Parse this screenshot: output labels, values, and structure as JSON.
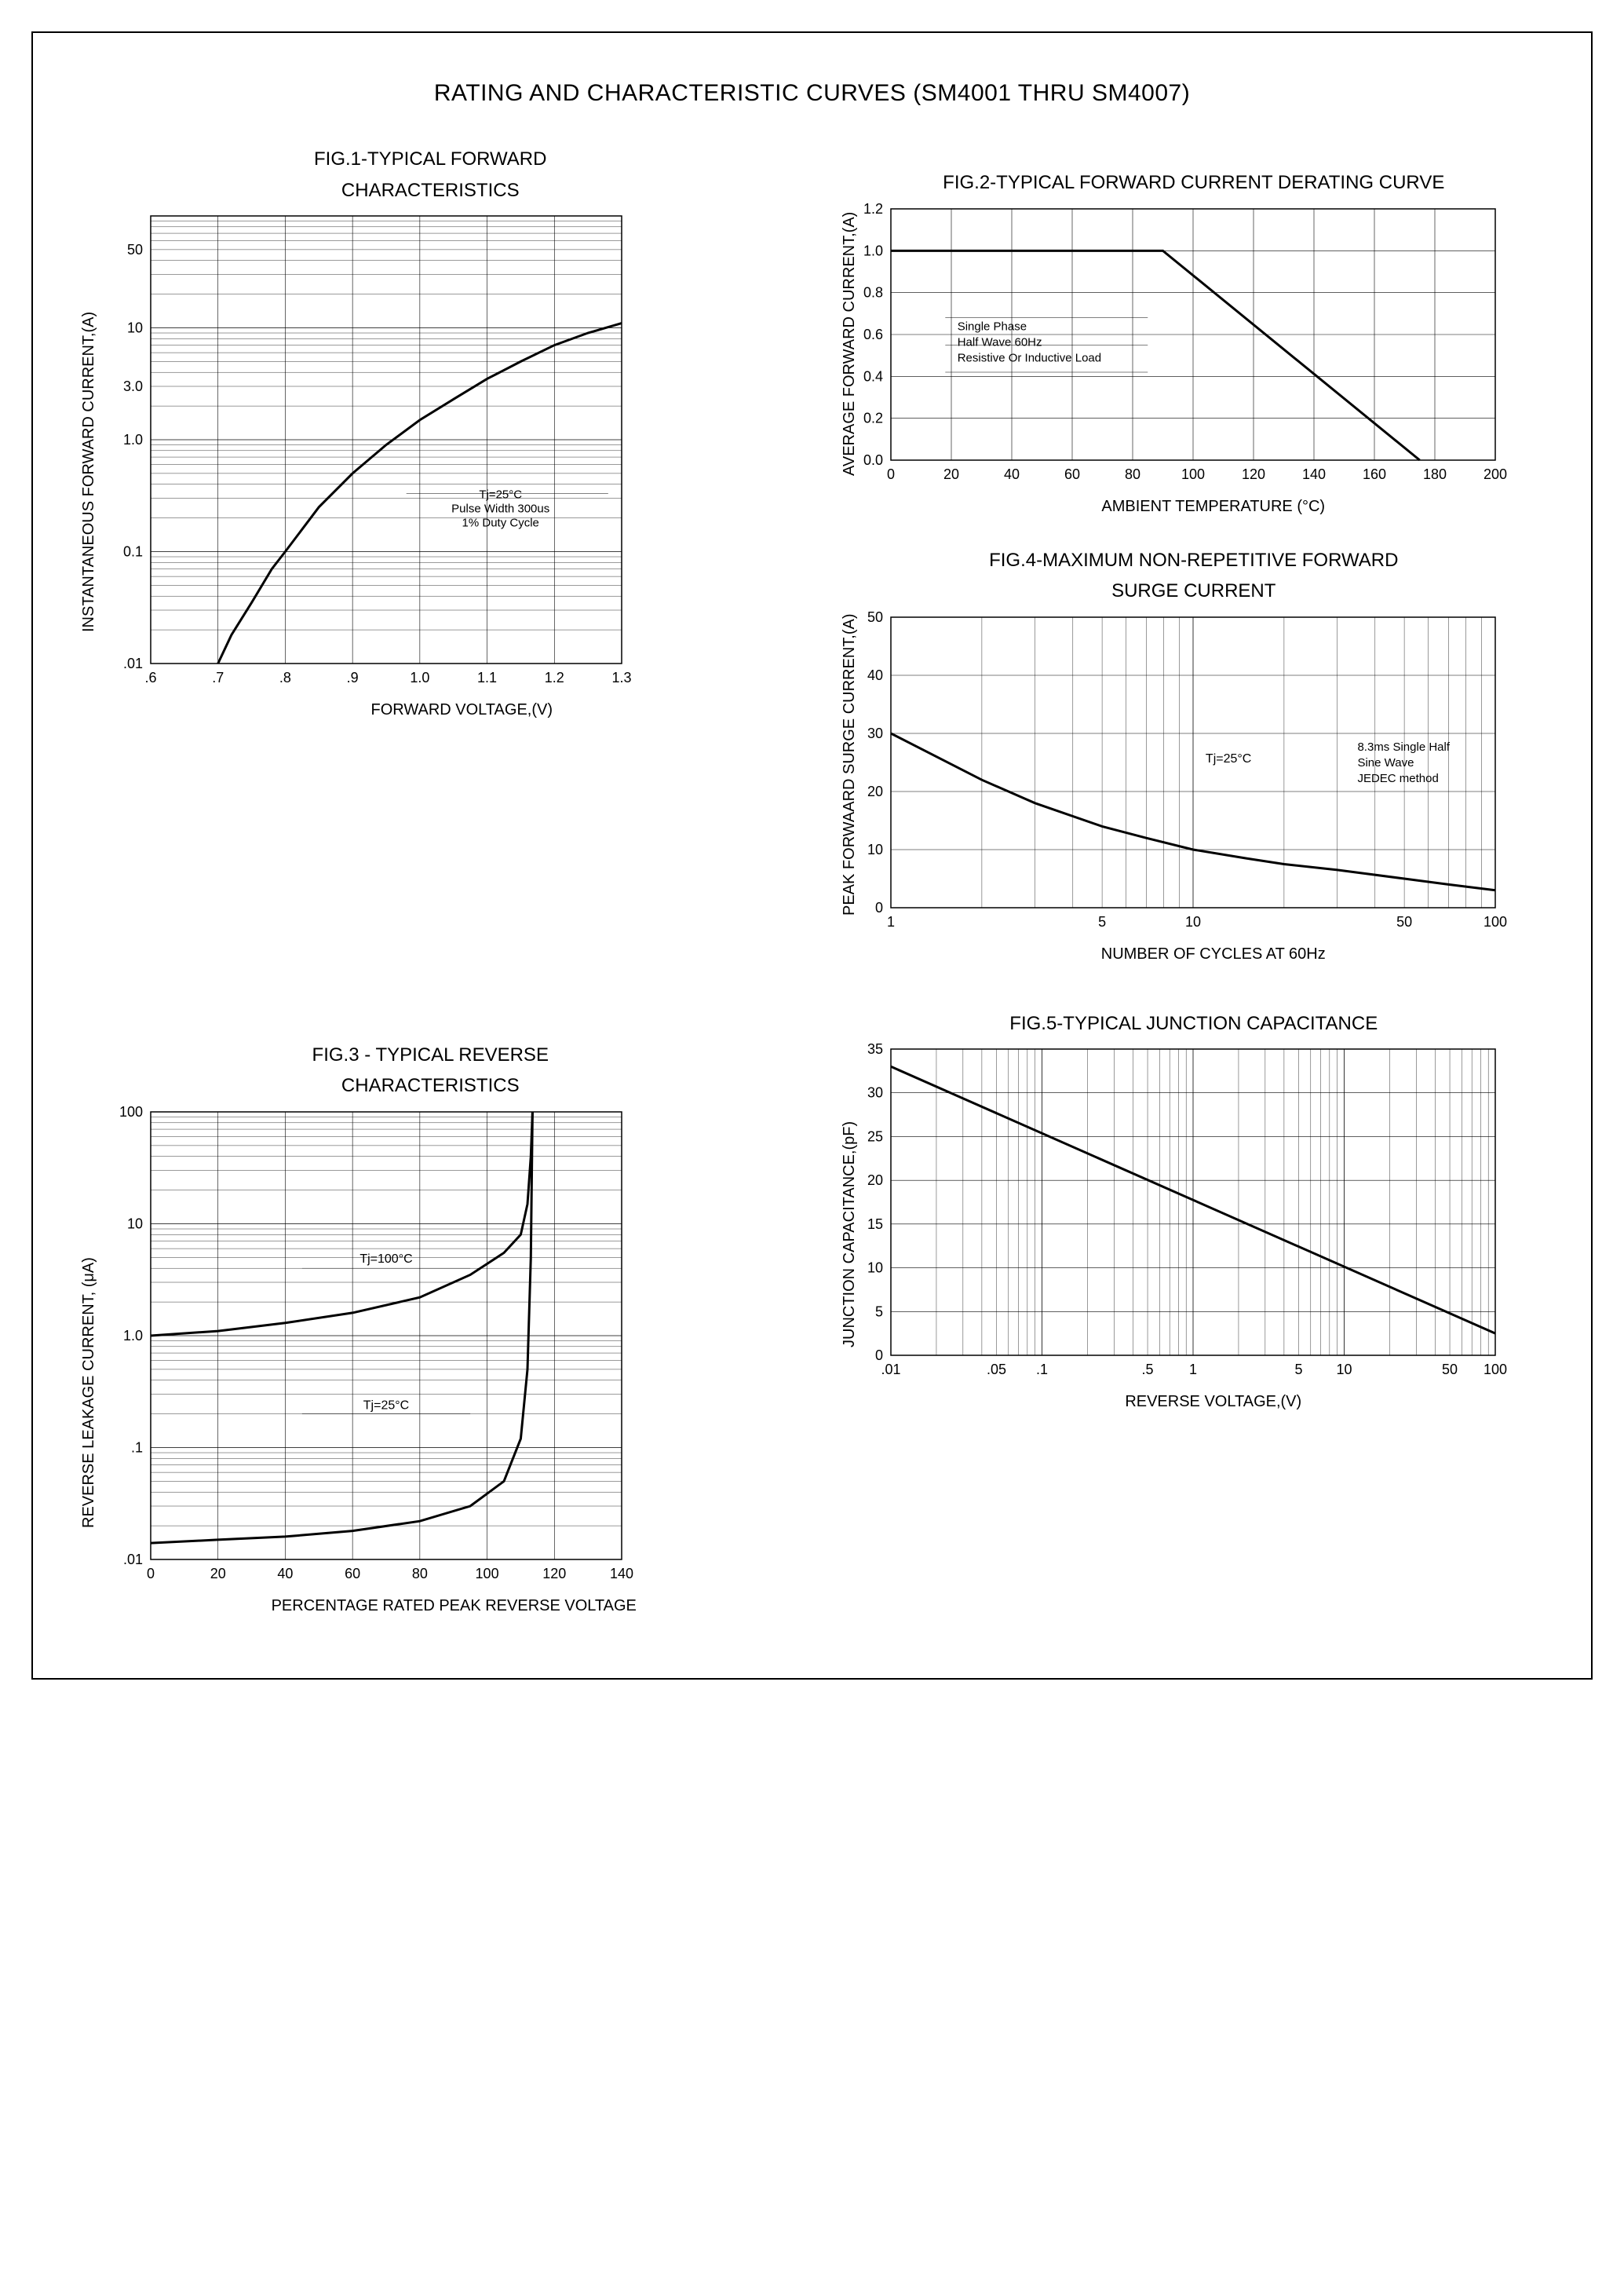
{
  "title": "RATING AND CHARACTERISTIC CURVES (SM4001 THRU SM4007)",
  "colors": {
    "line": "#000000",
    "grid": "#000000",
    "bg": "#ffffff"
  },
  "fig1": {
    "title1": "FIG.1-TYPICAL FORWARD",
    "title2": "CHARACTERISTICS",
    "xlabel": "FORWARD VOLTAGE,(V)",
    "ylabel": "INSTANTANEOUS FORWARD CURRENT,(A)",
    "type": "line-semilog-y",
    "xlim": [
      0.6,
      1.3
    ],
    "xticks": [
      0.6,
      0.7,
      0.8,
      0.9,
      1.0,
      1.1,
      1.2,
      1.3
    ],
    "xtick_labels": [
      ".6",
      ".7",
      ".8",
      ".9",
      "1.0",
      "1.1",
      "1.2",
      "1.3"
    ],
    "ylim_log": [
      -2,
      2
    ],
    "ytick_labels": [
      ".01",
      "0.1",
      "1.0",
      "3.0",
      "10",
      "50"
    ],
    "ytick_logpos": [
      -2,
      -1,
      0,
      0.477,
      1,
      1.699
    ],
    "anno_lines": [
      "Tj=25°C",
      "Pulse Width 300us",
      "1% Duty Cycle"
    ],
    "curve": [
      [
        0.7,
        0.01
      ],
      [
        0.72,
        0.018
      ],
      [
        0.75,
        0.035
      ],
      [
        0.78,
        0.07
      ],
      [
        0.8,
        0.1
      ],
      [
        0.85,
        0.25
      ],
      [
        0.9,
        0.5
      ],
      [
        0.95,
        0.9
      ],
      [
        1.0,
        1.5
      ],
      [
        1.05,
        2.3
      ],
      [
        1.1,
        3.5
      ],
      [
        1.15,
        5.0
      ],
      [
        1.2,
        7.0
      ],
      [
        1.25,
        9.0
      ],
      [
        1.3,
        11.0
      ]
    ],
    "line_width": 3
  },
  "fig2": {
    "title": "FIG.2-TYPICAL FORWARD CURRENT DERATING CURVE",
    "xlabel": "AMBIENT TEMPERATURE (°C)",
    "ylabel": "AVERAGE FORWARD CURRENT,(A)",
    "type": "line",
    "xlim": [
      0,
      200
    ],
    "xstep": 20,
    "ylim": [
      0,
      1.2
    ],
    "ystep": 0.2,
    "anno_lines": [
      "Single Phase",
      "Half Wave 60Hz",
      "Resistive Or Inductive Load"
    ],
    "curve": [
      [
        0,
        1.0
      ],
      [
        90,
        1.0
      ],
      [
        175,
        0.0
      ]
    ],
    "line_width": 3
  },
  "fig3": {
    "title1": "FIG.3 - TYPICAL REVERSE",
    "title2": "CHARACTERISTICS",
    "xlabel": "PERCENTAGE RATED PEAK REVERSE VOLTAGE",
    "ylabel": "REVERSE LEAKAGE CURRENT, (μA)",
    "type": "line-semilog-y",
    "xlim": [
      0,
      140
    ],
    "xstep": 20,
    "ylim_log": [
      -2,
      2
    ],
    "ytick_labels": [
      ".01",
      ".1",
      "1.0",
      "10",
      "100"
    ],
    "ytick_logpos": [
      -2,
      -1,
      0,
      1,
      2
    ],
    "anno1": "Tj=100°C",
    "anno2": "Tj=25°C",
    "curve_top": [
      [
        0,
        1.0
      ],
      [
        20,
        1.1
      ],
      [
        40,
        1.3
      ],
      [
        60,
        1.6
      ],
      [
        80,
        2.2
      ],
      [
        95,
        3.5
      ],
      [
        105,
        5.5
      ],
      [
        110,
        8.0
      ],
      [
        112,
        15
      ],
      [
        113,
        40
      ],
      [
        113.5,
        100
      ]
    ],
    "curve_bot": [
      [
        0,
        0.014
      ],
      [
        20,
        0.015
      ],
      [
        40,
        0.016
      ],
      [
        60,
        0.018
      ],
      [
        80,
        0.022
      ],
      [
        95,
        0.03
      ],
      [
        105,
        0.05
      ],
      [
        110,
        0.12
      ],
      [
        112,
        0.5
      ],
      [
        113,
        5
      ],
      [
        113.5,
        100
      ]
    ],
    "line_width": 3
  },
  "fig4": {
    "title1": "FIG.4-MAXIMUM NON-REPETITIVE FORWARD",
    "title2": "SURGE CURRENT",
    "xlabel": "NUMBER OF CYCLES AT 60Hz",
    "ylabel": "PEAK FORWAARD SURGE CURRENT,(A)",
    "type": "line-semilog-x",
    "xlim_log": [
      0,
      2
    ],
    "xtick_labels": [
      "1",
      "5",
      "10",
      "50",
      "100"
    ],
    "xtick_logpos": [
      0,
      0.699,
      1,
      1.699,
      2
    ],
    "ylim": [
      0,
      50
    ],
    "ystep": 10,
    "anno1": "Tj=25°C",
    "anno_lines": [
      "8.3ms Single Half",
      "Sine Wave",
      "JEDEC method"
    ],
    "curve": [
      [
        1,
        30
      ],
      [
        2,
        22
      ],
      [
        3,
        18
      ],
      [
        5,
        14
      ],
      [
        7,
        12
      ],
      [
        10,
        10
      ],
      [
        15,
        8.5
      ],
      [
        20,
        7.5
      ],
      [
        30,
        6.5
      ],
      [
        50,
        5
      ],
      [
        70,
        4
      ],
      [
        100,
        3
      ]
    ],
    "line_width": 3
  },
  "fig5": {
    "title": "FIG.5-TYPICAL JUNCTION CAPACITANCE",
    "xlabel": "REVERSE VOLTAGE,(V)",
    "ylabel": "JUNCTION CAPACITANCE,(pF)",
    "type": "line-semilog-x",
    "xlim_log": [
      -2,
      2
    ],
    "xtick_labels": [
      ".01",
      ".05",
      ".1",
      ".5",
      "1",
      "5",
      "10",
      "50",
      "100"
    ],
    "xtick_logpos": [
      -2,
      -1.301,
      -1,
      -0.301,
      0,
      0.699,
      1,
      1.699,
      2
    ],
    "ylim": [
      0,
      35
    ],
    "ystep": 5,
    "curve": [
      [
        0.01,
        33
      ],
      [
        100,
        2.5
      ]
    ],
    "line_width": 3
  }
}
